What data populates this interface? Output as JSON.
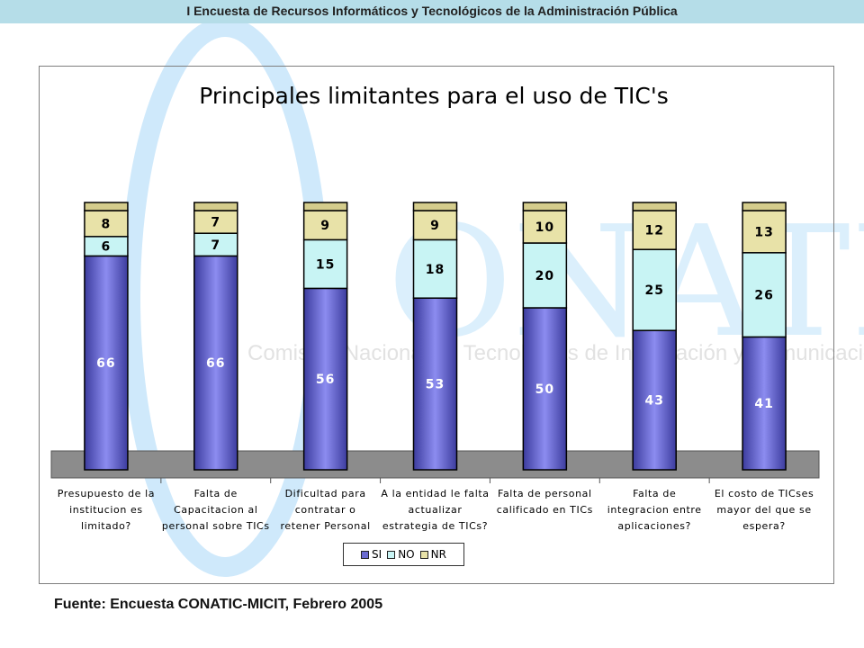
{
  "header": {
    "title": "I Encuesta de Recursos Informáticos y Tecnológicos de la Administración Pública"
  },
  "watermark": {
    "logo_text": "ONATIC",
    "subtitle": "Comisión Nacional de Tecnologías de Información y Comunicación"
  },
  "source": "Fuente: Encuesta CONATIC-MICIT, Febrero 2005",
  "colors": {
    "si": "#6b6bd0",
    "no": "#c8f4f4",
    "nr": "#e8e2a8",
    "floor": "#8c8c8c",
    "header": "#b5dde8"
  },
  "chart_data": {
    "type": "bar",
    "stacked": true,
    "title": "Principales limitantes para el uso de TIC's",
    "categories": [
      "Presupuesto de la institucion es limitado?",
      "Falta de Capacitacion al personal sobre TICs",
      "Dificultad para contratar o retener Personal",
      "A la entidad le falta actualizar estrategia de TICs?",
      "Falta de personal calificado en TICs",
      "Falta de integracion entre aplicaciones?",
      "El costo de TICses mayor del que se espera?"
    ],
    "category_lines": [
      [
        "Presupuesto de la",
        "institucion es",
        "limitado?"
      ],
      [
        "Falta de",
        "Capacitacion al",
        "personal sobre TICs"
      ],
      [
        "Dificultad para",
        "contratar o",
        "retener Personal"
      ],
      [
        "A la entidad le falta",
        "actualizar",
        "estrategia de TICs?"
      ],
      [
        "Falta de personal",
        "calificado en TICs"
      ],
      [
        "Falta de",
        "integracion entre",
        "aplicaciones?"
      ],
      [
        "El costo de TICses",
        "mayor del que se",
        "espera?"
      ]
    ],
    "series": [
      {
        "name": "SI",
        "values": [
          66,
          66,
          56,
          53,
          50,
          43,
          41
        ]
      },
      {
        "name": "NO",
        "values": [
          6,
          7,
          15,
          18,
          20,
          25,
          26
        ]
      },
      {
        "name": "NR",
        "values": [
          8,
          7,
          9,
          9,
          10,
          12,
          13
        ]
      }
    ],
    "legend_position": "bottom",
    "grid": false
  }
}
